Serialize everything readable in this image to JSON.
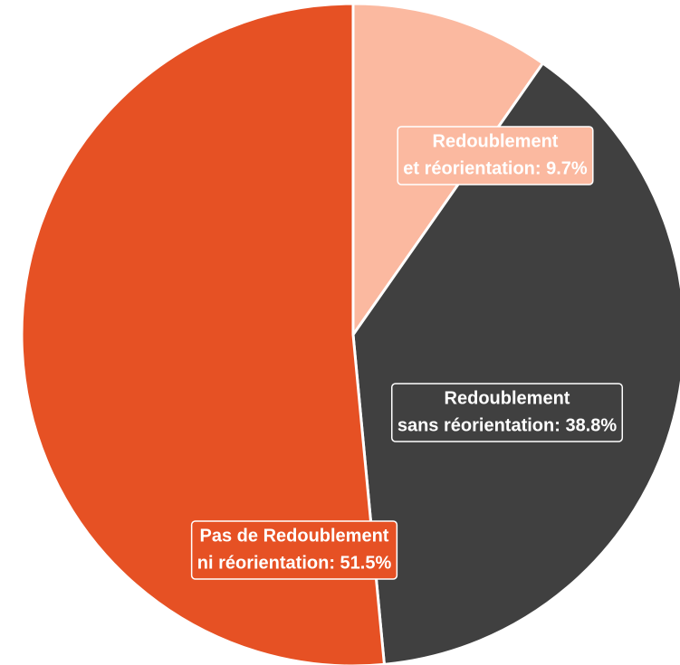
{
  "chart_data": {
    "type": "pie",
    "values": [
      9.7,
      38.8,
      51.5
    ],
    "value_labels": [
      [
        "Redoublement",
        "et réorientation: 9.7%"
      ],
      [
        "Redoublement",
        "sans réorientation: 38.8%"
      ],
      [
        "Pas de Redoublement",
        "ni réorientation: 51.5%"
      ]
    ],
    "colors": [
      "#fbb9a0",
      "#404040",
      "#e65124"
    ]
  }
}
